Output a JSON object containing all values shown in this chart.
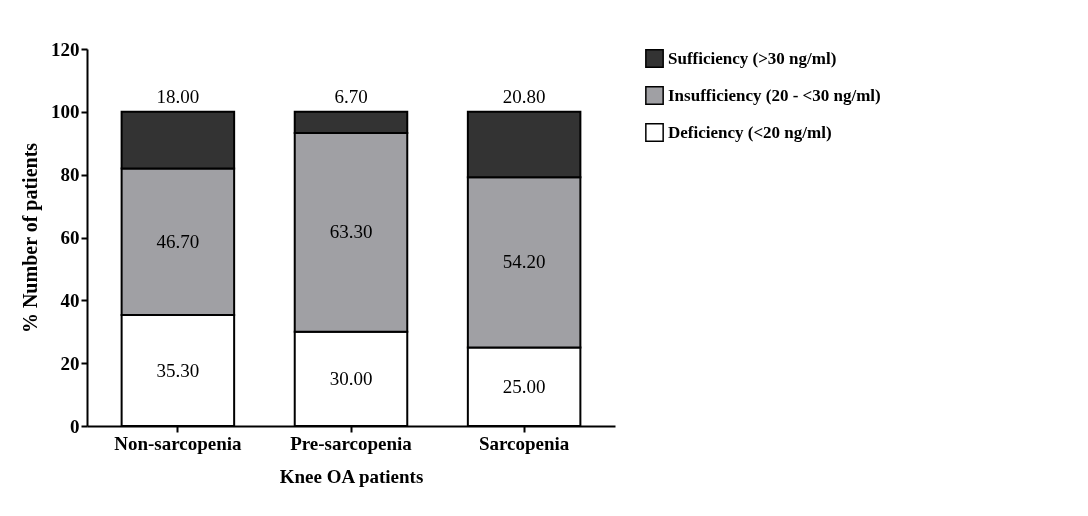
{
  "chart_data": {
    "type": "bar",
    "stacked": true,
    "xlabel": "Knee OA patients",
    "ylabel": "% Number of patients",
    "categories": [
      "Non-sarcopenia",
      "Pre-sarcopenia",
      "Sarcopenia"
    ],
    "series": [
      {
        "name": "Deficiency (<20 ng/ml)",
        "color": "#ffffff",
        "values": [
          35.3,
          30.0,
          25.0
        ],
        "value_labels": [
          "35.30",
          "30.00",
          "25.00"
        ]
      },
      {
        "name": "Insufficiency (20 - <30 ng/ml)",
        "color": "#a0a0a4",
        "values": [
          46.7,
          63.3,
          54.2
        ],
        "value_labels": [
          "46.70",
          "63.30",
          "54.20"
        ]
      },
      {
        "name": "Sufficiency (>30 ng/ml)",
        "color": "#333333",
        "values": [
          18.0,
          6.7,
          20.8
        ],
        "value_labels": [
          "18.00",
          "6.70",
          "20.80"
        ]
      }
    ],
    "ylim": [
      0,
      120
    ],
    "yticks": [
      0,
      20,
      40,
      60,
      80,
      100,
      120
    ],
    "legend": "top right"
  }
}
